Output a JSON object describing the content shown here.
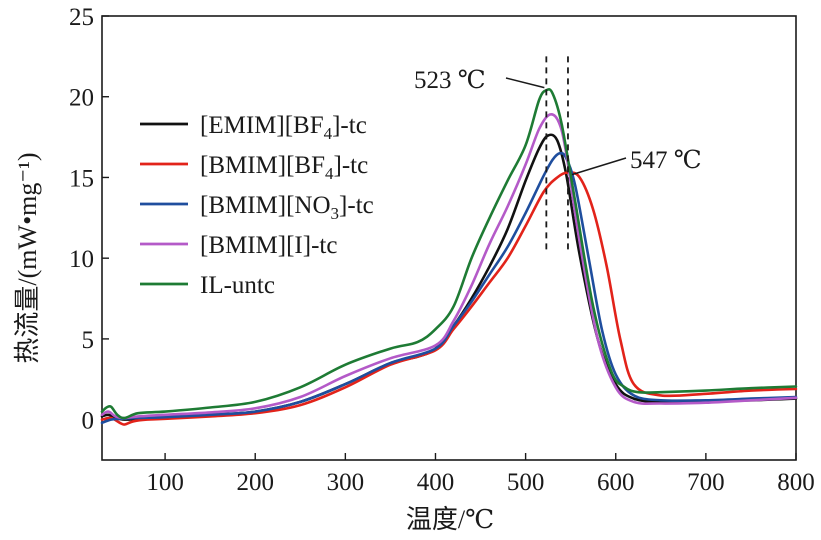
{
  "chart_data": {
    "type": "line",
    "xlabel": "温度/℃",
    "ylabel": "热流量/(mW•mg⁻¹)",
    "xlim": [
      30,
      800
    ],
    "ylim": [
      -2.5,
      25
    ],
    "xticks": [
      100,
      200,
      300,
      400,
      500,
      600,
      700,
      800
    ],
    "yticks": [
      0,
      5,
      10,
      15,
      20,
      25
    ],
    "grid": false,
    "legend": "upper-left",
    "series": [
      {
        "name": "[EMIM][BF4]-tc",
        "legend_parts": [
          [
            "[EMIM][BF",
            false
          ],
          [
            "4",
            true
          ],
          [
            "]-tc",
            false
          ]
        ],
        "color": "#111111",
        "x": [
          30,
          37,
          45,
          55,
          70,
          100,
          150,
          200,
          250,
          300,
          350,
          380,
          400,
          420,
          440,
          460,
          480,
          500,
          515,
          525,
          535,
          545,
          560,
          580,
          600,
          620,
          650,
          700,
          750,
          800
        ],
        "y": [
          0.2,
          0.3,
          0.1,
          0.0,
          0.05,
          0.15,
          0.3,
          0.5,
          1.1,
          2.2,
          3.5,
          3.9,
          4.4,
          5.8,
          7.5,
          9.5,
          11.8,
          14.8,
          16.8,
          17.6,
          17.3,
          15.2,
          10.2,
          5.0,
          2.2,
          1.3,
          1.1,
          1.15,
          1.2,
          1.3
        ]
      },
      {
        "name": "[BMIM][BF4]-tc",
        "legend_parts": [
          [
            "[BMIM][BF",
            false
          ],
          [
            "4",
            true
          ],
          [
            "]-tc",
            false
          ]
        ],
        "color": "#e2231a",
        "x": [
          30,
          40,
          50,
          55,
          65,
          80,
          100,
          150,
          200,
          250,
          300,
          350,
          400,
          420,
          440,
          460,
          480,
          500,
          520,
          535,
          547,
          560,
          575,
          590,
          605,
          620,
          650,
          700,
          750,
          800
        ],
        "y": [
          0.0,
          0.1,
          -0.2,
          -0.3,
          -0.1,
          0.0,
          0.05,
          0.2,
          0.4,
          0.9,
          2.0,
          3.4,
          4.3,
          5.6,
          7.0,
          8.5,
          10.0,
          12.0,
          14.1,
          15.0,
          15.3,
          15.0,
          13.0,
          9.5,
          5.0,
          2.2,
          1.5,
          1.6,
          1.8,
          1.9
        ]
      },
      {
        "name": "[BMIM][NO3]-tc",
        "legend_parts": [
          [
            "[BMIM][NO",
            false
          ],
          [
            "3",
            true
          ],
          [
            "]-tc",
            false
          ]
        ],
        "color": "#1f4e9e",
        "x": [
          30,
          40,
          50,
          70,
          100,
          150,
          200,
          250,
          300,
          350,
          400,
          420,
          440,
          460,
          480,
          500,
          520,
          530,
          538,
          545,
          555,
          570,
          585,
          600,
          620,
          650,
          700,
          750,
          800
        ],
        "y": [
          -0.2,
          0.0,
          0.05,
          0.1,
          0.15,
          0.3,
          0.5,
          1.1,
          2.2,
          3.5,
          4.4,
          5.8,
          7.3,
          9.0,
          10.7,
          12.8,
          15.1,
          16.1,
          16.5,
          16.2,
          14.5,
          10.0,
          5.5,
          2.8,
          1.5,
          1.2,
          1.2,
          1.3,
          1.4
        ]
      },
      {
        "name": "[BMIM][I]-tc",
        "legend_parts": [
          [
            "[BMIM][I]-tc",
            false
          ]
        ],
        "color": "#b45ac8",
        "x": [
          30,
          37,
          45,
          55,
          70,
          100,
          150,
          200,
          250,
          300,
          350,
          400,
          420,
          440,
          460,
          480,
          500,
          515,
          527,
          537,
          545,
          560,
          580,
          600,
          620,
          650,
          700,
          750,
          800
        ],
        "y": [
          0.3,
          0.5,
          0.2,
          0.1,
          0.2,
          0.3,
          0.45,
          0.7,
          1.4,
          2.7,
          3.8,
          4.6,
          6.1,
          8.3,
          10.9,
          13.2,
          15.8,
          18.0,
          18.9,
          18.4,
          16.5,
          11.0,
          5.0,
          2.0,
          1.1,
          1.0,
          1.05,
          1.2,
          1.35
        ]
      },
      {
        "name": "IL-untc",
        "legend_parts": [
          [
            "IL-untc",
            false
          ]
        ],
        "color": "#1e7b34",
        "x": [
          30,
          35,
          40,
          47,
          55,
          70,
          100,
          150,
          200,
          250,
          300,
          350,
          380,
          400,
          420,
          440,
          460,
          480,
          500,
          515,
          523,
          530,
          540,
          555,
          575,
          595,
          610,
          625,
          650,
          700,
          750,
          800
        ],
        "y": [
          0.5,
          0.75,
          0.8,
          0.3,
          0.1,
          0.4,
          0.5,
          0.75,
          1.1,
          2.0,
          3.4,
          4.4,
          4.8,
          5.6,
          7.0,
          10.0,
          12.5,
          14.8,
          17.0,
          19.8,
          20.4,
          20.2,
          18.3,
          13.5,
          7.0,
          3.0,
          2.0,
          1.7,
          1.7,
          1.8,
          1.95,
          2.05
        ]
      }
    ],
    "annotations": [
      {
        "text": "523 ℃",
        "x": 523
      },
      {
        "text": "547 ℃",
        "x": 547
      }
    ]
  }
}
